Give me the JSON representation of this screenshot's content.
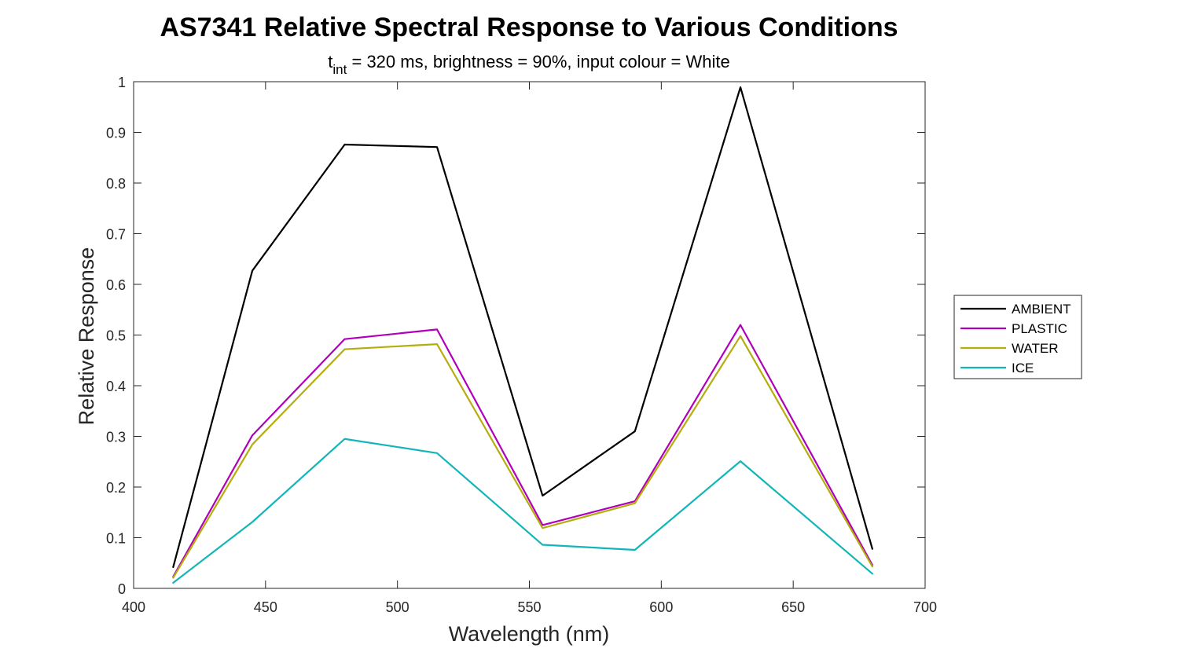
{
  "chart_data": {
    "type": "line",
    "title": "AS7341 Relative Spectral Response to Various Conditions",
    "subtitle": {
      "t": "t",
      "sub": "int",
      "rest": " = 320 ms, brightness = 90%, input colour = White"
    },
    "xlabel": "Wavelength (nm)",
    "ylabel": "Relative Response",
    "xlim": [
      400,
      700
    ],
    "ylim": [
      0,
      1
    ],
    "xticks": [
      400,
      450,
      500,
      550,
      600,
      650,
      700
    ],
    "yticks": [
      0,
      0.1,
      0.2,
      0.3,
      0.4,
      0.5,
      0.6,
      0.7,
      0.8,
      0.9,
      1
    ],
    "xtick_labels": [
      "400",
      "450",
      "500",
      "550",
      "600",
      "650",
      "700"
    ],
    "ytick_labels": [
      "0",
      "0.1",
      "0.2",
      "0.3",
      "0.4",
      "0.5",
      "0.6",
      "0.7",
      "0.8",
      "0.9",
      "1"
    ],
    "grid": false,
    "legend_position": "right",
    "x": [
      415,
      445,
      480,
      515,
      555,
      590,
      630,
      680
    ],
    "series": [
      {
        "name": "AMBIENT",
        "color": "#000000",
        "values": [
          0.042,
          0.627,
          0.876,
          0.871,
          0.183,
          0.31,
          0.989,
          0.078
        ]
      },
      {
        "name": "PLASTIC",
        "color": "#b000b8",
        "values": [
          0.023,
          0.302,
          0.492,
          0.511,
          0.125,
          0.172,
          0.52,
          0.046
        ]
      },
      {
        "name": "WATER",
        "color": "#b5ad0c",
        "values": [
          0.021,
          0.284,
          0.472,
          0.482,
          0.119,
          0.168,
          0.498,
          0.043
        ]
      },
      {
        "name": "ICE",
        "color": "#13b5b8",
        "values": [
          0.011,
          0.131,
          0.295,
          0.267,
          0.086,
          0.076,
          0.251,
          0.029
        ]
      }
    ]
  }
}
